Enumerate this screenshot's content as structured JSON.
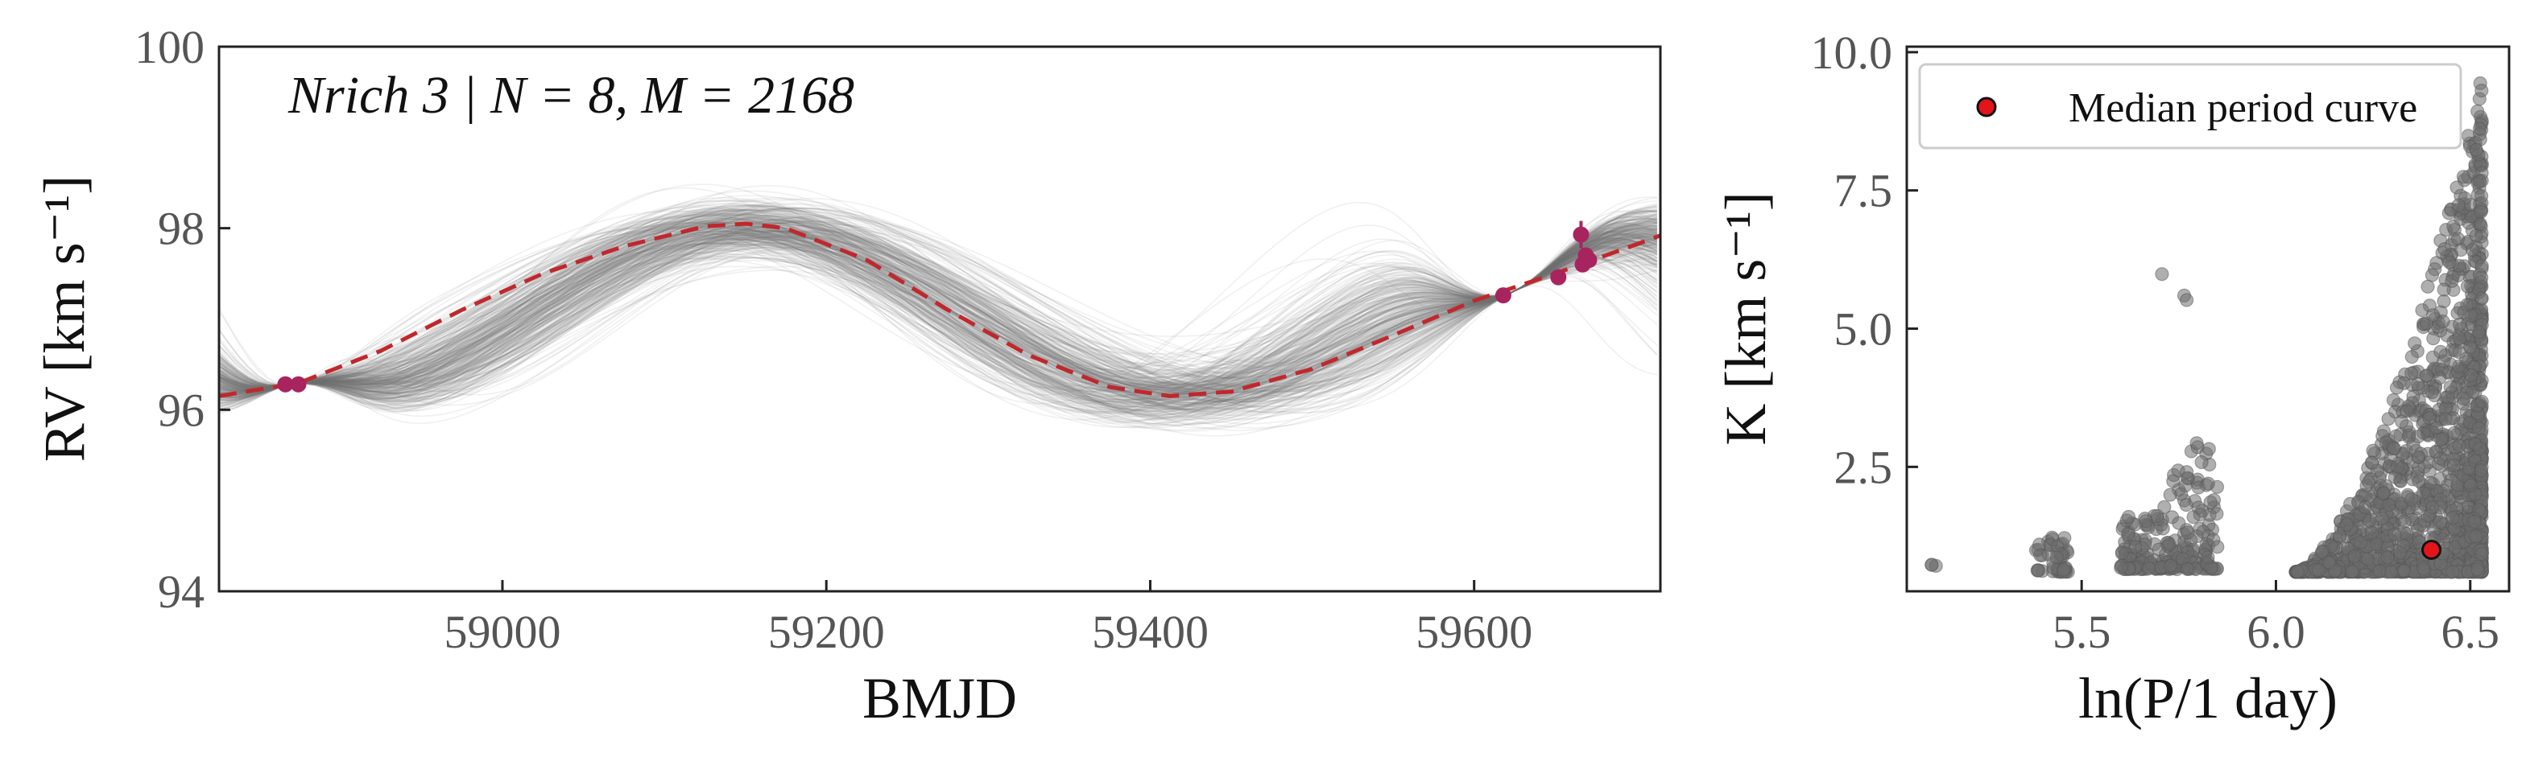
{
  "chart_data": [
    {
      "type": "line",
      "title": "",
      "annotation": "Nrich 3 | N = 8, M = 2168",
      "xlabel": "BMJD",
      "ylabel": "RV [km s⁻¹]",
      "xlim": [
        58825,
        59715
      ],
      "ylim": [
        94,
        100
      ],
      "xticks": [
        59000,
        59200,
        59400,
        59600
      ],
      "yticks": [
        94,
        96,
        98,
        100
      ],
      "grid": false,
      "colors": {
        "samples": "#7a7a7a",
        "median_curve": "#c0282d",
        "points": "#a8245e"
      },
      "samples": {
        "count_drawn": 350,
        "center": [
          96.15,
          98.0,
          96.15
        ],
        "spread": 1.3
      },
      "series": [
        {
          "style": "dashed",
          "x": [
            58825,
            58875,
            58925,
            58975,
            59025,
            59075,
            59125,
            59150,
            59175,
            59225,
            59275,
            59325,
            59375,
            59412,
            59450,
            59500,
            59550,
            59600,
            59650,
            59700,
            59715
          ],
          "y": [
            96.15,
            96.3,
            96.65,
            97.1,
            97.5,
            97.8,
            98.02,
            98.05,
            98.0,
            97.65,
            97.1,
            96.6,
            96.25,
            96.15,
            96.2,
            96.45,
            96.82,
            97.2,
            97.5,
            97.82,
            97.92
          ]
        }
      ],
      "points": [
        {
          "x": 58866,
          "y": 96.28,
          "err": 0.05
        },
        {
          "x": 58874,
          "y": 96.28,
          "err": 0.05
        },
        {
          "x": 59618,
          "y": 97.26,
          "err": 0.06
        },
        {
          "x": 59652,
          "y": 97.46,
          "err": 0.06
        },
        {
          "x": 59666,
          "y": 97.93,
          "err": 0.15
        },
        {
          "x": 59667,
          "y": 97.6,
          "err": 0.08
        },
        {
          "x": 59669,
          "y": 97.7,
          "err": 0.08
        },
        {
          "x": 59671,
          "y": 97.65,
          "err": 0.08
        }
      ]
    },
    {
      "type": "scatter",
      "title": "",
      "xlabel": "ln(P/1 day)",
      "ylabel": "K [km s⁻¹]",
      "xlim": [
        5.05,
        6.6
      ],
      "ylim": [
        0.25,
        10.1
      ],
      "xticks": [
        "5.5",
        "6.0",
        "6.5"
      ],
      "yticks": [
        "2.5",
        "5.0",
        "7.5",
        "10.0"
      ],
      "grid": false,
      "legend": {
        "position": "top-right",
        "entries": [
          "Median period curve"
        ]
      },
      "colors": {
        "points": "#6e6e6e",
        "median": "#e3141a"
      },
      "clusters": [
        {
          "x_range": [
            5.1,
            5.13
          ],
          "k_range": [
            0.7,
            0.75
          ],
          "count": 3
        },
        {
          "x_range": [
            5.38,
            5.47
          ],
          "k_range": [
            0.6,
            1.3
          ],
          "count": 45
        },
        {
          "x_range": [
            5.6,
            5.85
          ],
          "k_range": [
            0.65,
            3.4
          ],
          "count": 220
        },
        {
          "x_range": [
            5.7,
            5.78
          ],
          "k_range": [
            5.4,
            6.5
          ],
          "count": 3
        },
        {
          "x_range": [
            6.05,
            6.53
          ],
          "k_range": [
            0.6,
            9.6
          ],
          "count": 1600
        }
      ],
      "median_point": {
        "x": 6.4,
        "k": 1.0
      }
    }
  ]
}
